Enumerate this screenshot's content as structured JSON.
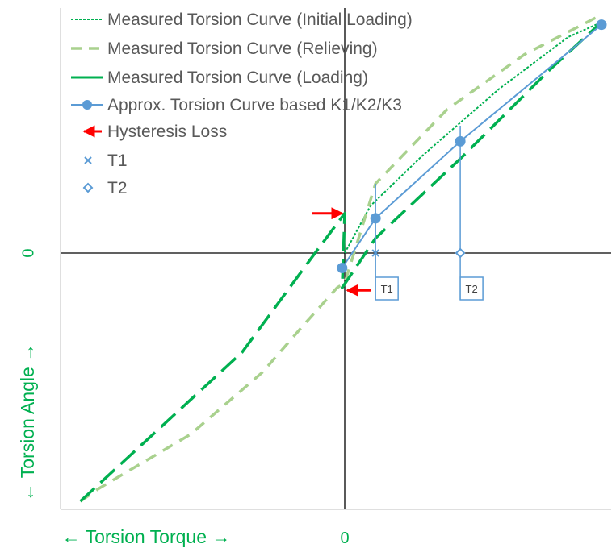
{
  "chart_data": {
    "type": "line",
    "xlabel": "← Torsion Torque →",
    "ylabel": "← Torsion Angle →",
    "x_zero_label": "0",
    "y_zero_label": "0",
    "xlim": [
      -10,
      10
    ],
    "ylim": [
      -10,
      10
    ],
    "grid": false,
    "legend_position": "top-left",
    "legend": [
      {
        "label": "Measured Torsion Curve (Initial Loading)",
        "color": "#00b050",
        "style": "dotted"
      },
      {
        "label": "Measured Torsion Curve (Relieving)",
        "color": "#a9d18e",
        "style": "dashed"
      },
      {
        "label": "Measured Torsion Curve (Loading)",
        "color": "#00b050",
        "style": "dashed"
      },
      {
        "label": "Approx. Torsion Curve  based K1/K2/K3",
        "color": "#5b9bd5",
        "style": "line-marker"
      },
      {
        "label": "Hysteresis Loss",
        "color": "#ff0000",
        "style": "arrow"
      },
      {
        "label": "T1",
        "color": "#5b9bd5",
        "style": "x-marker"
      },
      {
        "label": "T2",
        "color": "#5b9bd5",
        "style": "diamond-marker"
      }
    ],
    "series": [
      {
        "name": "Measured Torsion Curve (Initial Loading)",
        "color": "#00b050",
        "style": "dotted",
        "x": [
          0,
          1,
          3,
          6,
          8.7,
          10
        ],
        "y": [
          0,
          1.9,
          3.9,
          6.6,
          8.7,
          9.3
        ]
      },
      {
        "name": "Measured Torsion Curve (Relieving)",
        "color": "#a9d18e",
        "style": "dashed",
        "x": [
          -10.3,
          -9.6,
          -6,
          -3.2,
          -1.6,
          -0.3,
          0,
          1.2,
          4,
          7,
          10
        ],
        "y": [
          -10,
          -9.5,
          -7.3,
          -4.8,
          -2.9,
          -1.4,
          -1.2,
          2.8,
          5.8,
          8,
          9.6
        ]
      },
      {
        "name": "Measured Torsion Curve (Loading)",
        "color": "#00b050",
        "style": "dashed",
        "x": [
          -10.3,
          -4,
          -1.3,
          0,
          -0.1,
          1.2,
          4.5,
          8,
          10
        ],
        "y": [
          -10,
          -4,
          -0.2,
          1.6,
          -1.4,
          0.6,
          3.8,
          7.4,
          9.3
        ]
      },
      {
        "name": "Approx. Torsion Curve  based K1/K2/K3",
        "color": "#5b9bd5",
        "style": "line-marker",
        "x": [
          -0.1,
          1.2,
          4.5,
          10
        ],
        "y": [
          -0.6,
          1.4,
          4.5,
          9.2
        ]
      }
    ],
    "markers": {
      "T1": {
        "x": 1.2,
        "y": 0
      },
      "T2": {
        "x": 4.5,
        "y": 0
      }
    },
    "annotations": [
      {
        "type": "hysteresis-arrow",
        "label": "Hysteresis Loss",
        "x": 0,
        "y": 1.6
      },
      {
        "type": "hysteresis-arrow",
        "label": "Hysteresis Loss",
        "x": 0,
        "y": -1.5
      },
      {
        "type": "callout",
        "label": "T1",
        "x": 1.2
      },
      {
        "type": "callout",
        "label": "T2",
        "x": 4.5
      }
    ]
  }
}
